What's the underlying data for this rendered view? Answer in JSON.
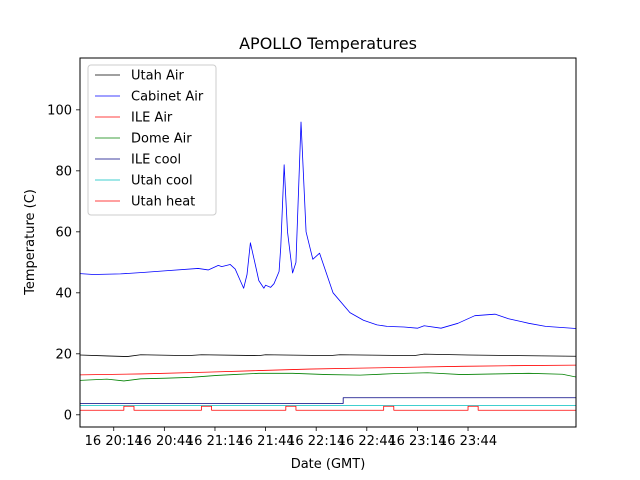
{
  "chart_data": {
    "type": "line",
    "title": "APOLLO Temperatures",
    "xlabel": "Date (GMT)",
    "ylabel": "Temperature (C)",
    "xlim": [
      1194,
      1488
    ],
    "ylim": [
      -4,
      117
    ],
    "x_ticks": [
      {
        "value": 1214,
        "label": "16 20:14"
      },
      {
        "value": 1244,
        "label": "16 20:44"
      },
      {
        "value": 1274,
        "label": "16 21:14"
      },
      {
        "value": 1304,
        "label": "16 21:44"
      },
      {
        "value": 1334,
        "label": "16 22:14"
      },
      {
        "value": 1364,
        "label": "16 22:44"
      },
      {
        "value": 1394,
        "label": "16 23:14"
      },
      {
        "value": 1424,
        "label": "16 23:44"
      }
    ],
    "y_ticks": [
      {
        "value": 0,
        "label": "0"
      },
      {
        "value": 20,
        "label": "20"
      },
      {
        "value": 40,
        "label": "40"
      },
      {
        "value": 60,
        "label": "60"
      },
      {
        "value": 80,
        "label": "80"
      },
      {
        "value": 100,
        "label": "100"
      }
    ],
    "legend_position": "top-left",
    "series": [
      {
        "name": "Utah Air",
        "color": "#000000",
        "x": [
          1194,
          1210,
          1222,
          1230,
          1258,
          1266,
          1300,
          1304,
          1342,
          1348,
          1392,
          1398,
          1424,
          1488
        ],
        "values": [
          19.6,
          19.3,
          19.1,
          19.7,
          19.4,
          19.7,
          19.4,
          19.7,
          19.4,
          19.7,
          19.4,
          19.9,
          19.6,
          19.2
        ]
      },
      {
        "name": "Cabinet Air",
        "color": "#0000ff",
        "x": [
          1194,
          1202,
          1218,
          1232,
          1244,
          1264,
          1270,
          1276,
          1278,
          1283,
          1286,
          1289,
          1291,
          1293,
          1295,
          1298,
          1300,
          1303,
          1304,
          1307,
          1309,
          1312,
          1313,
          1315,
          1317,
          1320,
          1322,
          1325,
          1328,
          1332,
          1336,
          1344,
          1354,
          1362,
          1370,
          1376,
          1386,
          1394,
          1398,
          1408,
          1418,
          1428,
          1440,
          1448,
          1456,
          1460,
          1470,
          1488
        ],
        "values": [
          46.3,
          46.0,
          46.2,
          46.7,
          47.2,
          48.0,
          47.5,
          49.0,
          48.6,
          49.3,
          47.8,
          44.0,
          41.5,
          46.0,
          56.4,
          49.0,
          44.0,
          41.5,
          42.5,
          41.8,
          43.0,
          47.0,
          55.0,
          82.0,
          60.0,
          46.5,
          50.0,
          96.0,
          60.0,
          51.0,
          53.0,
          40.0,
          33.5,
          31.0,
          29.5,
          29.0,
          28.8,
          28.4,
          29.2,
          28.4,
          30.0,
          32.5,
          33.0,
          31.5,
          30.5,
          30.0,
          29.0,
          28.3
        ]
      },
      {
        "name": "ILE Air",
        "color": "#ff0000",
        "x": [
          1194,
          1230,
          1270,
          1300,
          1330,
          1360,
          1390,
          1420,
          1450,
          1488
        ],
        "values": [
          13.1,
          13.4,
          14.0,
          14.5,
          15.0,
          15.3,
          15.6,
          15.9,
          16.1,
          16.3
        ]
      },
      {
        "name": "Dome Air",
        "color": "#008000",
        "x": [
          1194,
          1210,
          1220,
          1230,
          1245,
          1260,
          1275,
          1285,
          1300,
          1320,
          1340,
          1360,
          1380,
          1400,
          1420,
          1440,
          1460,
          1480,
          1488
        ],
        "values": [
          11.3,
          11.7,
          11.1,
          11.8,
          12.0,
          12.3,
          12.9,
          13.2,
          13.6,
          13.6,
          13.2,
          13.0,
          13.5,
          13.8,
          13.2,
          13.4,
          13.6,
          13.3,
          12.4
        ]
      },
      {
        "name": "ILE cool",
        "color": "#000080",
        "x": [
          1194,
          1350,
          1350,
          1488
        ],
        "values": [
          3.7,
          3.7,
          5.6,
          5.6
        ]
      },
      {
        "name": "Utah cool",
        "color": "#00bfbf",
        "x": [
          1194,
          1488
        ],
        "values": [
          3.0,
          3.0
        ]
      },
      {
        "name": "Utah heat",
        "color": "#ff0000",
        "x": [
          1194,
          1220,
          1220,
          1226,
          1226,
          1266,
          1266,
          1272,
          1272,
          1316,
          1316,
          1322,
          1322,
          1374,
          1374,
          1380,
          1380,
          1424,
          1424,
          1430,
          1430,
          1488
        ],
        "values": [
          1.5,
          1.5,
          2.8,
          2.8,
          1.5,
          1.5,
          2.8,
          2.8,
          1.5,
          1.5,
          2.8,
          2.8,
          1.5,
          1.5,
          2.8,
          2.8,
          1.5,
          1.5,
          2.8,
          2.8,
          1.5,
          1.5
        ]
      }
    ]
  }
}
